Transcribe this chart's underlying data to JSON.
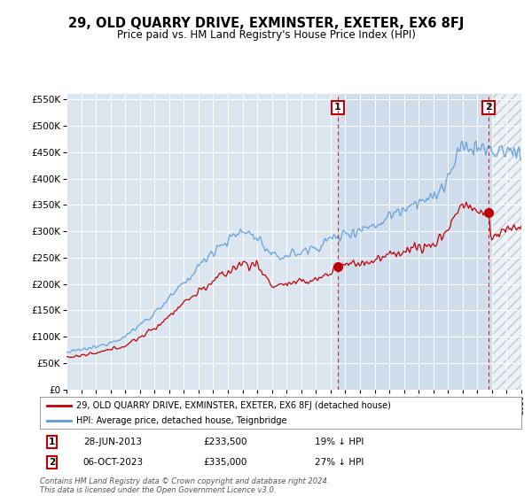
{
  "title": "29, OLD QUARRY DRIVE, EXMINSTER, EXETER, EX6 8FJ",
  "subtitle": "Price paid vs. HM Land Registry's House Price Index (HPI)",
  "legend_label_red": "29, OLD QUARRY DRIVE, EXMINSTER, EXETER, EX6 8FJ (detached house)",
  "legend_label_blue": "HPI: Average price, detached house, Teignbridge",
  "annotation1_date": "28-JUN-2013",
  "annotation1_price": "£233,500",
  "annotation1_pct": "19% ↓ HPI",
  "annotation2_date": "06-OCT-2023",
  "annotation2_price": "£335,000",
  "annotation2_pct": "27% ↓ HPI",
  "footer": "Contains HM Land Registry data © Crown copyright and database right 2024.\nThis data is licensed under the Open Government Licence v3.0.",
  "hpi_color": "#5b9bd5",
  "price_color": "#c00000",
  "vline_color": "#c00000",
  "plot_bg_color": "#dce6f1",
  "plot_bg_color2": "#c5d5e8",
  "hatch_color": "#c0c8d0",
  "ylim": [
    0,
    560000
  ],
  "yticks": [
    0,
    50000,
    100000,
    150000,
    200000,
    250000,
    300000,
    350000,
    400000,
    450000,
    500000,
    550000
  ],
  "sale1_year": 2013.49,
  "sale1_price": 233500,
  "sale2_year": 2023.76,
  "sale2_price": 335000,
  "xmin": 1995,
  "xmax": 2026
}
